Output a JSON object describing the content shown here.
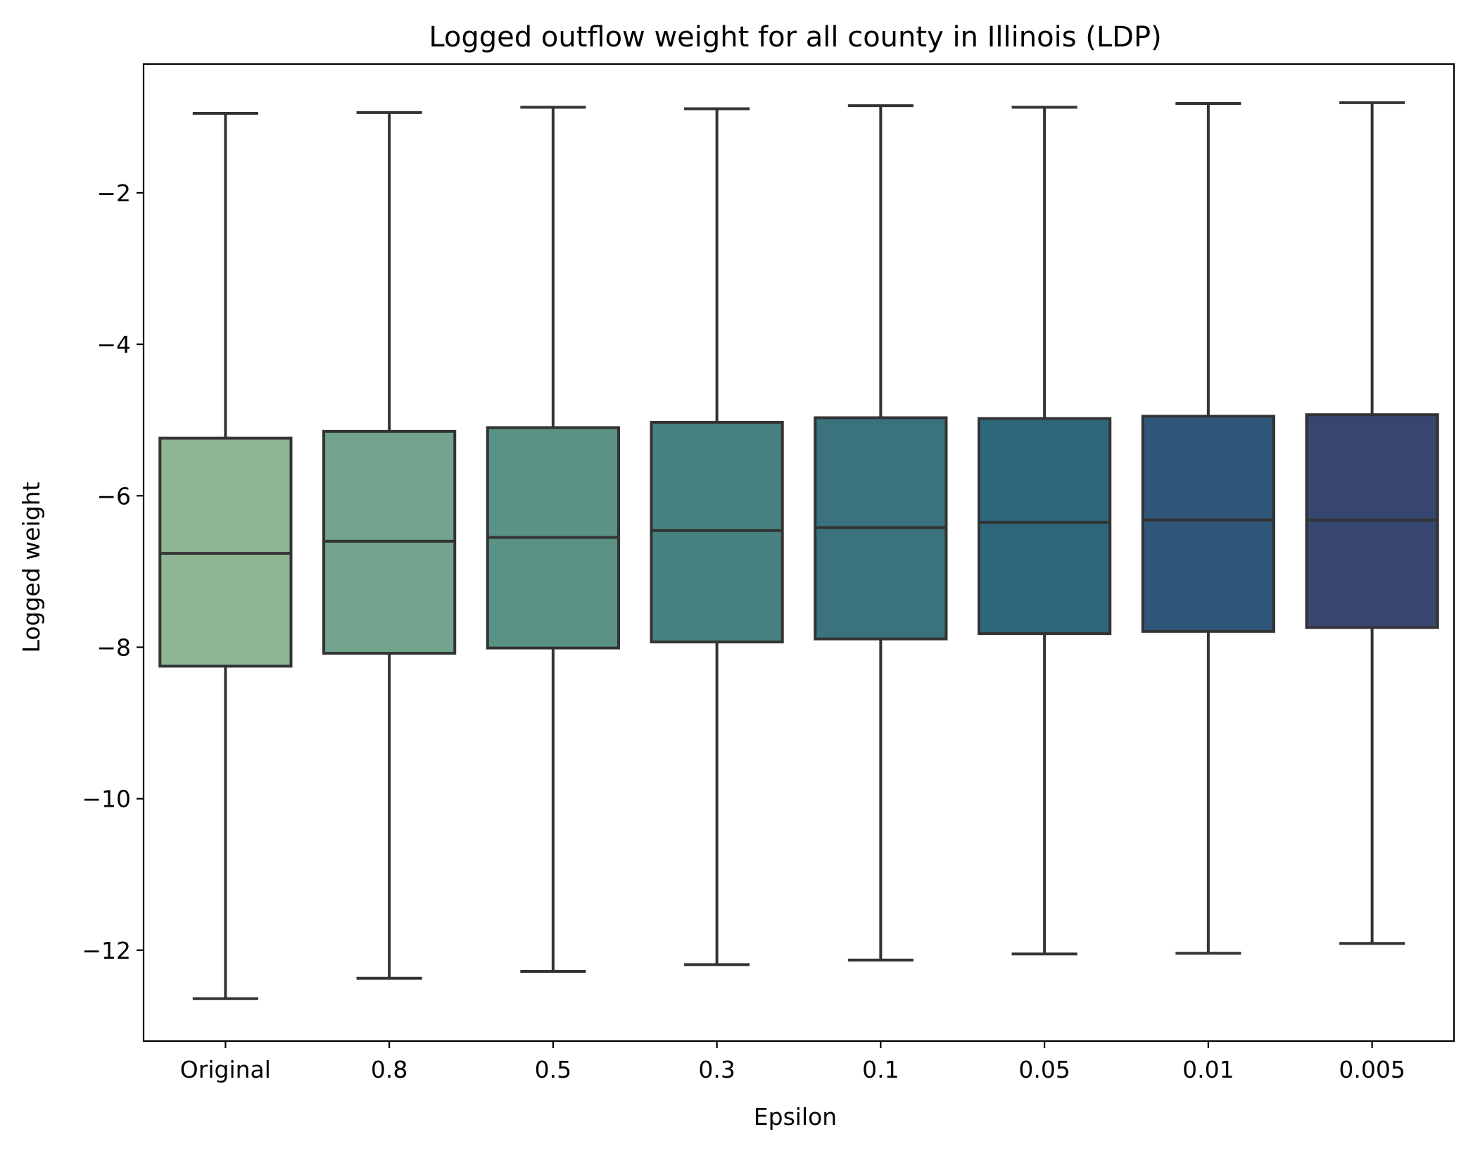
{
  "chart_data": {
    "type": "box",
    "title": "Logged outflow weight for all county in Illinois (LDP)",
    "xlabel": "Epsilon",
    "ylabel": "Logged weight",
    "ylim": [
      -13.2,
      -0.3
    ],
    "yticks": [
      -2,
      -4,
      -6,
      -8,
      -10,
      -12
    ],
    "ytick_labels": [
      "−2",
      "−4",
      "−6",
      "−8",
      "−10",
      "−12"
    ],
    "grid": false,
    "categories": [
      "Original",
      "0.8",
      "0.5",
      "0.3",
      "0.1",
      "0.05",
      "0.01",
      "0.005"
    ],
    "boxes": [
      {
        "category": "Original",
        "whisker_low": -12.64,
        "q1": -8.25,
        "median": -6.76,
        "q3": -5.24,
        "whisker_high": -0.95,
        "color": "#8db593"
      },
      {
        "category": "0.8",
        "whisker_low": -12.37,
        "q1": -8.08,
        "median": -6.6,
        "q3": -5.15,
        "whisker_high": -0.94,
        "color": "#72a38c"
      },
      {
        "category": "0.5",
        "whisker_low": -12.28,
        "q1": -8.01,
        "median": -6.55,
        "q3": -5.1,
        "whisker_high": -0.87,
        "color": "#5a9386"
      },
      {
        "category": "0.3",
        "whisker_low": -12.19,
        "q1": -7.93,
        "median": -6.46,
        "q3": -5.03,
        "whisker_high": -0.89,
        "color": "#47817f"
      },
      {
        "category": "0.1",
        "whisker_low": -12.13,
        "q1": -7.89,
        "median": -6.42,
        "q3": -4.97,
        "whisker_high": -0.85,
        "color": "#3a727d"
      },
      {
        "category": "0.05",
        "whisker_low": -12.05,
        "q1": -7.82,
        "median": -6.35,
        "q3": -4.98,
        "whisker_high": -0.87,
        "color": "#2e667a"
      },
      {
        "category": "0.01",
        "whisker_low": -12.04,
        "q1": -7.79,
        "median": -6.32,
        "q3": -4.95,
        "whisker_high": -0.82,
        "color": "#30577a"
      },
      {
        "category": "0.005",
        "whisker_low": -11.91,
        "q1": -7.74,
        "median": -6.32,
        "q3": -4.93,
        "whisker_high": -0.81,
        "color": "#36466f"
      }
    ],
    "line_color": "#333333"
  }
}
